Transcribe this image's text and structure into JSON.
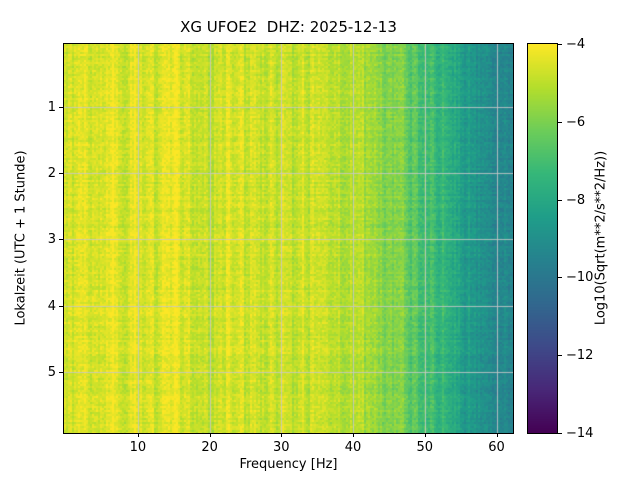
{
  "chart_data": {
    "type": "heatmap",
    "subtype": "spectrogram",
    "title": "XG UFOE2  DHZ: 2025-12-13",
    "xlabel": "Frequency [Hz]",
    "ylabel": "Lokalzeit (UTC + 1 Stunde)",
    "x_range": [
      -0.3,
      62.3
    ],
    "x_ticks": [
      10,
      20,
      30,
      40,
      50,
      60
    ],
    "y_range": [
      0.05,
      5.92
    ],
    "y_ticks": [
      1,
      2,
      3,
      4,
      5
    ],
    "grid": true,
    "colorbar": {
      "label": "Log10(Sqrt(m**2/s**2/Hz))",
      "range": [
        -14,
        -4
      ],
      "ticks": [
        -4,
        -6,
        -8,
        -10,
        -12,
        -14
      ],
      "colormap": "viridis"
    },
    "spectrum_profile": {
      "freq_hz": [
        0,
        1,
        3,
        5,
        8,
        10,
        12,
        15,
        18,
        20,
        22,
        25,
        28,
        30,
        32,
        35,
        38,
        40,
        42,
        44,
        46,
        48,
        50,
        52,
        54,
        56,
        58,
        60,
        62.3
      ],
      "log10_value": [
        -4.3,
        -4.5,
        -4.5,
        -4.4,
        -4.6,
        -4.5,
        -4.6,
        -4.5,
        -4.7,
        -4.8,
        -4.7,
        -4.7,
        -4.8,
        -4.9,
        -4.8,
        -4.9,
        -5.0,
        -5.1,
        -5.3,
        -5.6,
        -5.9,
        -6.4,
        -7.0,
        -7.5,
        -8.1,
        -8.6,
        -9.0,
        -9.3,
        -9.6
      ]
    },
    "noise": {
      "band": 0.35,
      "column": 0.25,
      "cell": 0.7,
      "row": 0.2
    }
  }
}
